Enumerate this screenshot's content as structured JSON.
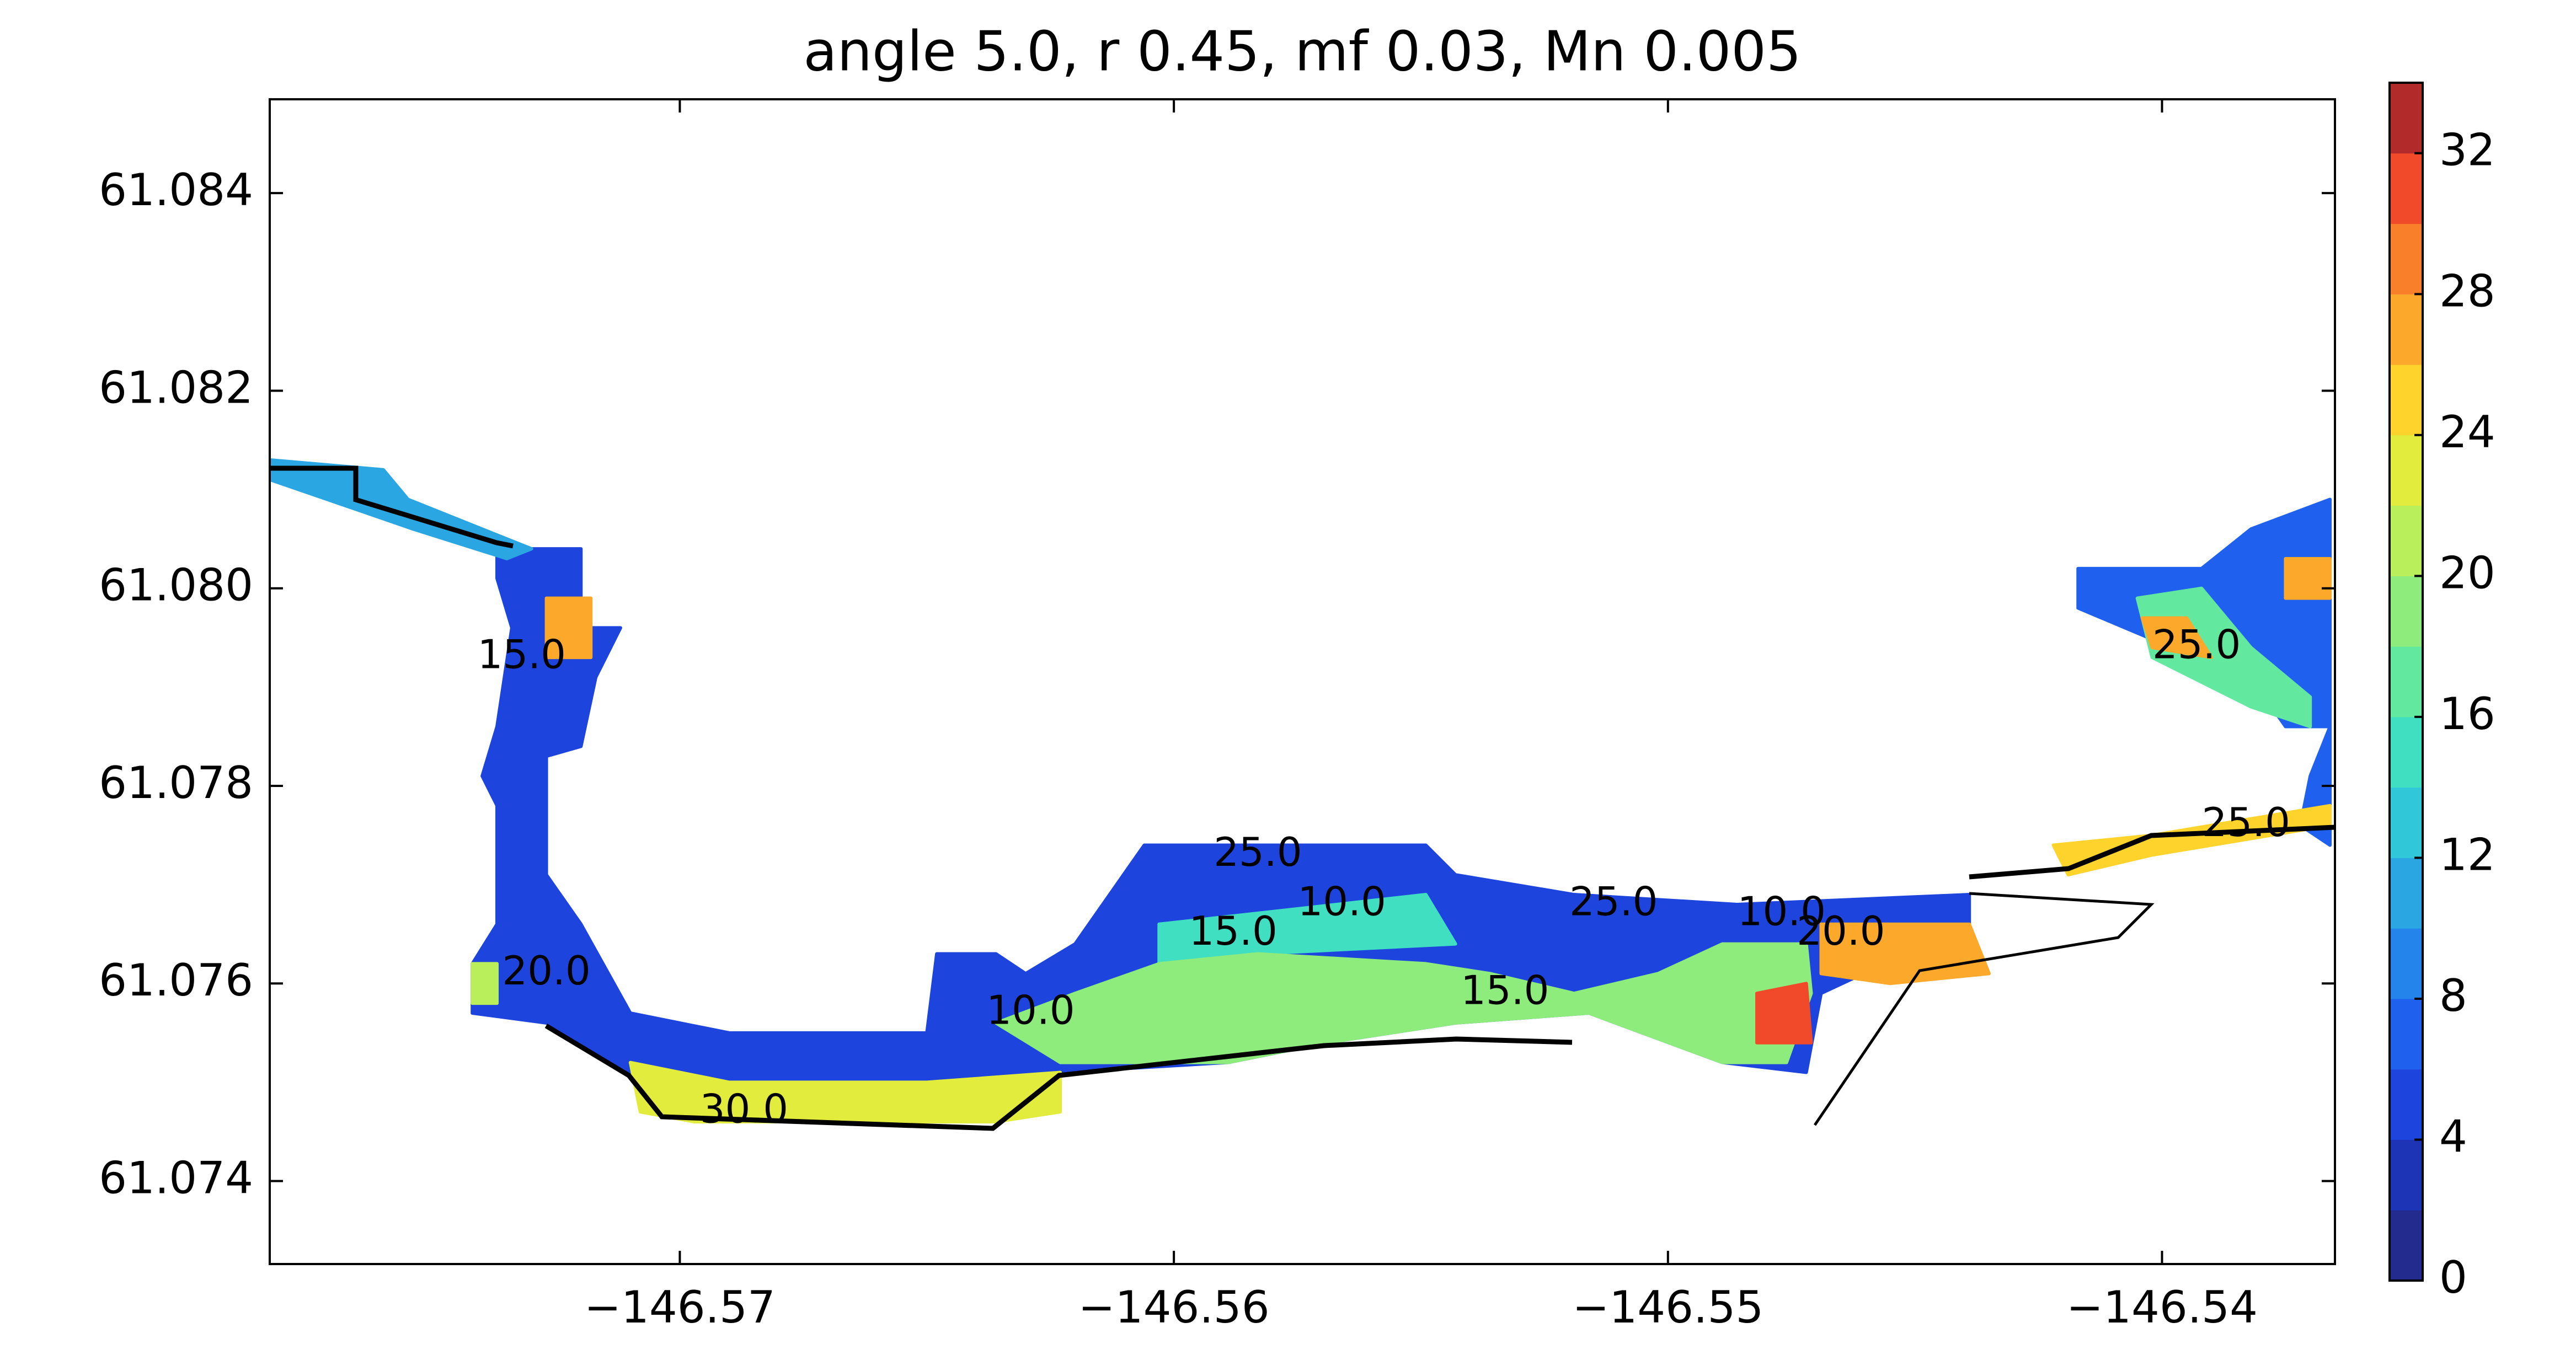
{
  "chart_data": {
    "type": "contourf",
    "title": "angle 5.0, r 0.45, mf 0.03, Mn 0.005",
    "xlim": [
      -146.5783,
      -146.5365
    ],
    "ylim": [
      61.07316,
      61.08495
    ],
    "xticks": [
      {
        "value": -146.57,
        "label": "−146.57"
      },
      {
        "value": -146.56,
        "label": "−146.56"
      },
      {
        "value": -146.55,
        "label": "−146.55"
      },
      {
        "value": -146.54,
        "label": "−146.54"
      }
    ],
    "yticks": [
      {
        "value": 61.074,
        "label": "61.074"
      },
      {
        "value": 61.076,
        "label": "61.076"
      },
      {
        "value": 61.078,
        "label": "61.078"
      },
      {
        "value": 61.08,
        "label": "61.080"
      },
      {
        "value": 61.082,
        "label": "61.082"
      },
      {
        "value": 61.084,
        "label": "61.084"
      }
    ],
    "colorbar": {
      "levels": [
        0,
        2,
        4,
        6,
        8,
        10,
        12,
        14,
        16,
        18,
        20,
        22,
        24,
        26,
        28,
        30,
        32,
        34
      ],
      "colors": [
        "#232b8e",
        "#1e34b6",
        "#1d44dc",
        "#2060ee",
        "#2584ec",
        "#2aa7e3",
        "#30c8d9",
        "#40dfc1",
        "#62e89f",
        "#8dec7c",
        "#b9ef5a",
        "#e2ec3c",
        "#fdd32c",
        "#fca92b",
        "#fa7f2a",
        "#f04a2a",
        "#b32a2a"
      ],
      "ticks": [
        0,
        4,
        8,
        12,
        16,
        20,
        24,
        28,
        32
      ]
    },
    "regions": [
      {
        "value": 5,
        "x": [
          -146.5737,
          -146.572,
          -146.572,
          -146.5712,
          -146.5717,
          -146.572,
          -146.5727,
          -146.5727,
          -146.572,
          -146.571,
          -146.569,
          -146.565,
          -146.5648,
          -146.5636,
          -146.563,
          -146.562,
          -146.5606,
          -146.5589,
          -146.5549,
          -146.5543,
          -146.5519,
          -146.5486,
          -146.5439,
          -146.5439,
          -146.5469,
          -146.5472,
          -146.5489,
          -146.5516,
          -146.5543,
          -146.5569,
          -146.5589,
          -146.5623,
          -146.5636,
          -146.5697,
          -146.571,
          -146.5727,
          -146.5742,
          -146.5742,
          -146.5737,
          -146.5737,
          -146.574,
          -146.5737,
          -146.5734,
          -146.5737
        ],
        "y": [
          61.0804,
          61.0804,
          61.0796,
          61.0796,
          61.0791,
          61.0784,
          61.0783,
          61.0771,
          61.0766,
          61.0757,
          61.0755,
          61.0755,
          61.0763,
          61.0763,
          61.0761,
          61.0764,
          61.0774,
          61.0774,
          61.0774,
          61.0771,
          61.0769,
          61.0768,
          61.0769,
          61.0766,
          61.0759,
          61.0751,
          61.0752,
          61.0757,
          61.0756,
          61.0754,
          61.0752,
          61.0751,
          61.0746,
          61.0746,
          61.0751,
          61.0756,
          61.0757,
          61.0762,
          61.0766,
          61.0778,
          61.0781,
          61.0786,
          61.0796,
          61.0801
        ]
      },
      {
        "value": 10,
        "x": [
          -146.5783,
          -146.576,
          -146.5755,
          -146.574,
          -146.573,
          -146.5735,
          -146.5754,
          -146.5783
        ],
        "y": [
          61.0813,
          61.0812,
          61.0809,
          61.0806,
          61.0804,
          61.0803,
          61.0806,
          61.0811
        ]
      },
      {
        "value": 6,
        "x": [
          -146.5417,
          -146.5392,
          -146.5382,
          -146.5366,
          -146.5366,
          -146.5372,
          -146.537,
          -146.5366,
          -146.5375,
          -146.5382,
          -146.5398,
          -146.5417
        ],
        "y": [
          61.0802,
          61.0802,
          61.0806,
          61.0809,
          61.0774,
          61.0776,
          61.0781,
          61.0786,
          61.0786,
          61.0791,
          61.0794,
          61.0798
        ]
      },
      {
        "value": 14,
        "x": [
          -146.5603,
          -146.5549,
          -146.5543,
          -146.5583,
          -146.5603
        ],
        "y": [
          61.0766,
          61.0769,
          61.0764,
          61.0763,
          61.0762
        ]
      },
      {
        "value": 18,
        "x": [
          -146.5636,
          -146.562,
          -146.5603,
          -146.5583,
          -146.5549,
          -146.5536,
          -146.5519,
          -146.5502,
          -146.5489,
          -146.5472,
          -146.5471,
          -146.5476,
          -146.5489,
          -146.5516,
          -146.5543,
          -146.5569,
          -146.5589,
          -146.5623
        ],
        "y": [
          61.0756,
          61.0759,
          61.0762,
          61.0763,
          61.0762,
          61.0761,
          61.0759,
          61.0761,
          61.0764,
          61.0764,
          61.0759,
          61.0752,
          61.0752,
          61.0757,
          61.0756,
          61.0754,
          61.0752,
          61.0752
        ]
      },
      {
        "value": 22,
        "x": [
          -146.571,
          -146.569,
          -146.565,
          -146.5623,
          -146.5623,
          -146.5636,
          -146.5697,
          -146.5708
        ],
        "y": [
          61.0752,
          61.075,
          61.075,
          61.0751,
          61.0747,
          61.0746,
          61.0746,
          61.0747
        ]
      },
      {
        "value": 16,
        "x": [
          -146.5405,
          -146.5392,
          -146.5382,
          -146.537,
          -146.537,
          -146.5382,
          -146.5402
        ],
        "y": [
          61.0799,
          61.08,
          61.0794,
          61.0789,
          61.0786,
          61.0788,
          61.0793
        ]
      },
      {
        "value": 27,
        "x": [
          -146.5375,
          -146.5366,
          -146.5366,
          -146.5375
        ],
        "y": [
          61.0803,
          61.0803,
          61.0799,
          61.0799
        ]
      },
      {
        "value": 27,
        "x": [
          -146.5404,
          -146.5395,
          -146.539,
          -146.5402
        ],
        "y": [
          61.0797,
          61.0797,
          61.0793,
          61.0794
        ]
      },
      {
        "value": 26,
        "x": [
          -146.5727,
          -146.5718,
          -146.5718,
          -146.5727
        ],
        "y": [
          61.0799,
          61.0799,
          61.0793,
          61.0793
        ]
      },
      {
        "value": 20,
        "x": [
          -146.5742,
          -146.5737,
          -146.5737,
          -146.5742
        ],
        "y": [
          61.0762,
          61.0762,
          61.0758,
          61.0758
        ]
      },
      {
        "value": 24,
        "x": [
          -146.5422,
          -146.5402,
          -146.5366,
          -146.5366,
          -146.5402,
          -146.5419
        ],
        "y": [
          61.0774,
          61.0775,
          61.0778,
          61.0776,
          61.0773,
          61.0771
        ]
      },
      {
        "value": 26,
        "x": [
          -146.5469,
          -146.5439,
          -146.5435,
          -146.5455,
          -146.5469
        ],
        "y": [
          61.0766,
          61.0766,
          61.0761,
          61.076,
          61.0761
        ]
      },
      {
        "value": 30,
        "x": [
          -146.5482,
          -146.5472,
          -146.5471,
          -146.5482
        ],
        "y": [
          61.0759,
          61.076,
          61.0754,
          61.0754
        ]
      }
    ],
    "contour_labels": [
      {
        "value": 30,
        "label": "30.0",
        "x": -146.5687,
        "y": 61.0747
      },
      {
        "value": 10,
        "label": "10.0",
        "x": -146.5629,
        "y": 61.0757
      },
      {
        "value": 15,
        "label": "15.0",
        "x": -146.5533,
        "y": 61.0759
      },
      {
        "value": 15,
        "label": "15.0",
        "x": -146.5588,
        "y": 61.0765
      },
      {
        "value": 10,
        "label": "10.0",
        "x": -146.5566,
        "y": 61.0768
      },
      {
        "value": 25,
        "label": "25.0",
        "x": -146.5511,
        "y": 61.0768
      },
      {
        "value": 10,
        "label": "10.0",
        "x": -146.5477,
        "y": 61.0767
      },
      {
        "value": 20,
        "label": "20.0",
        "x": -146.5465,
        "y": 61.0765
      },
      {
        "value": 25,
        "label": "25.0",
        "x": -146.5393,
        "y": 61.0794
      },
      {
        "value": 25,
        "label": "25.0",
        "x": -146.5383,
        "y": 61.0776
      },
      {
        "value": 20,
        "label": "20.0",
        "x": -146.5727,
        "y": 61.0761
      },
      {
        "value": 15,
        "label": "15.0",
        "x": -146.5732,
        "y": 61.0793
      },
      {
        "value": 25,
        "label": "25.0",
        "x": -146.5583,
        "y": 61.0773
      }
    ]
  }
}
